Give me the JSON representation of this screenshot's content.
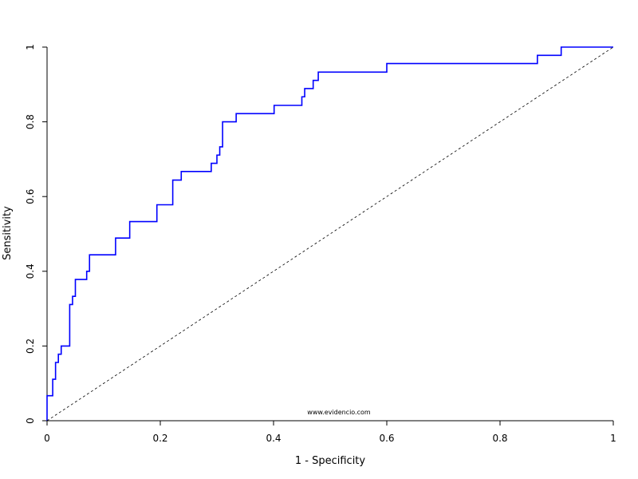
{
  "chart_data": {
    "type": "line",
    "title": "",
    "xlabel": "1 - Specificity",
    "ylabel": "Sensitivity",
    "xlim": [
      0,
      1
    ],
    "ylim": [
      0,
      1
    ],
    "x_ticks": [
      0,
      0.2,
      0.4,
      0.6,
      0.8,
      1
    ],
    "x_tick_labels": [
      "0",
      "0.2",
      "0.4",
      "0.6",
      "0.8",
      "1"
    ],
    "y_ticks": [
      0,
      0.2,
      0.4,
      0.6,
      0.8,
      1
    ],
    "y_tick_labels": [
      "0",
      "0.2",
      "0.4",
      "0.6",
      "0.8",
      "1"
    ],
    "grid": false,
    "legend": "none",
    "annotation": "www.evidencio.com",
    "series": [
      {
        "line_style": "step",
        "color": "#0000ff",
        "points": [
          [
            0,
            0
          ],
          [
            0,
            0.067
          ],
          [
            0.01,
            0.067
          ],
          [
            0.01,
            0.111
          ],
          [
            0.015,
            0.111
          ],
          [
            0.015,
            0.156
          ],
          [
            0.02,
            0.156
          ],
          [
            0.02,
            0.178
          ],
          [
            0.025,
            0.178
          ],
          [
            0.025,
            0.2
          ],
          [
            0.04,
            0.2
          ],
          [
            0.04,
            0.311
          ],
          [
            0.045,
            0.311
          ],
          [
            0.045,
            0.333
          ],
          [
            0.05,
            0.333
          ],
          [
            0.05,
            0.378
          ],
          [
            0.07,
            0.378
          ],
          [
            0.07,
            0.4
          ],
          [
            0.075,
            0.4
          ],
          [
            0.075,
            0.444
          ],
          [
            0.121,
            0.444
          ],
          [
            0.121,
            0.489
          ],
          [
            0.146,
            0.489
          ],
          [
            0.146,
            0.533
          ],
          [
            0.194,
            0.533
          ],
          [
            0.194,
            0.578
          ],
          [
            0.222,
            0.578
          ],
          [
            0.222,
            0.644
          ],
          [
            0.237,
            0.644
          ],
          [
            0.237,
            0.667
          ],
          [
            0.29,
            0.667
          ],
          [
            0.29,
            0.689
          ],
          [
            0.3,
            0.689
          ],
          [
            0.3,
            0.711
          ],
          [
            0.305,
            0.711
          ],
          [
            0.305,
            0.733
          ],
          [
            0.31,
            0.733
          ],
          [
            0.31,
            0.8
          ],
          [
            0.334,
            0.8
          ],
          [
            0.334,
            0.822
          ],
          [
            0.401,
            0.822
          ],
          [
            0.401,
            0.844
          ],
          [
            0.45,
            0.844
          ],
          [
            0.45,
            0.867
          ],
          [
            0.455,
            0.867
          ],
          [
            0.455,
            0.889
          ],
          [
            0.47,
            0.889
          ],
          [
            0.47,
            0.911
          ],
          [
            0.479,
            0.911
          ],
          [
            0.479,
            0.933
          ],
          [
            0.6,
            0.933
          ],
          [
            0.6,
            0.956
          ],
          [
            0.866,
            0.956
          ],
          [
            0.866,
            0.978
          ],
          [
            0.908,
            0.978
          ],
          [
            0.908,
            1
          ],
          [
            1,
            1
          ]
        ]
      },
      {
        "line_style": "dashed",
        "color": "#000000",
        "points": [
          [
            0,
            0
          ],
          [
            1,
            1
          ]
        ]
      }
    ]
  }
}
